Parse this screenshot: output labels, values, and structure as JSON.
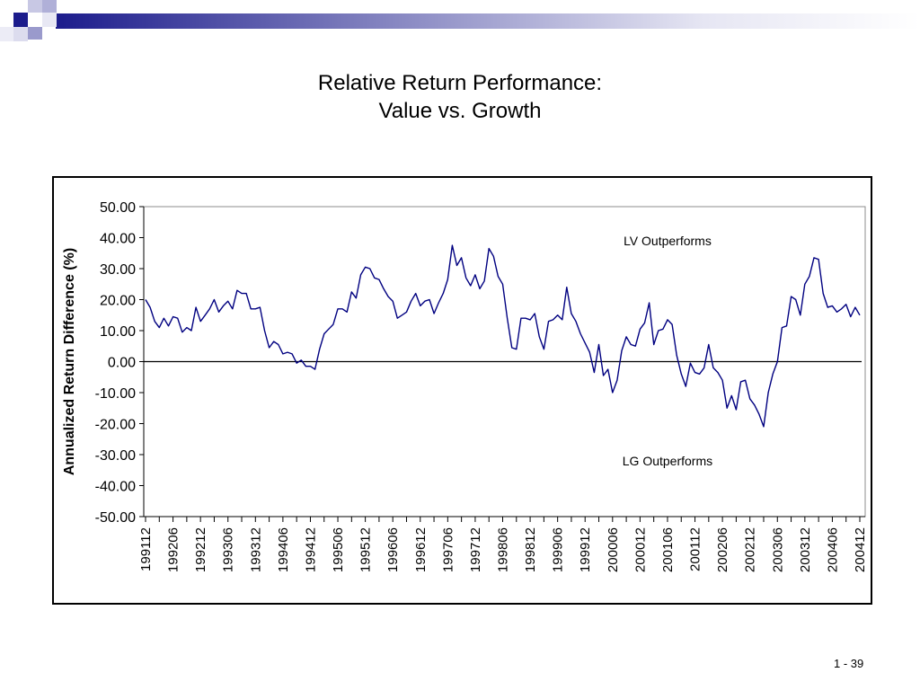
{
  "slide": {
    "title_line1": "Relative Return Performance:",
    "title_line2": "Value vs. Growth",
    "page_number": "1 - 39"
  },
  "chart_data": {
    "type": "line",
    "title": "Relative Return Performance: Value vs. Growth",
    "ylabel": "Annualized Return Difference (%)",
    "xlabel": "",
    "ylim": [
      -50,
      50
    ],
    "y_ticks": [
      "50.00",
      "40.00",
      "30.00",
      "20.00",
      "10.00",
      "0.00",
      "-10.00",
      "-20.00",
      "-30.00",
      "-40.00",
      "-50.00"
    ],
    "x_tick_labels": [
      "199112",
      "199206",
      "199212",
      "199306",
      "199312",
      "199406",
      "199412",
      "199506",
      "199512",
      "199606",
      "199612",
      "199706",
      "199712",
      "199806",
      "199812",
      "199906",
      "199912",
      "200006",
      "200012",
      "200106",
      "200112",
      "200206",
      "200212",
      "200306",
      "200312",
      "200406",
      "200412"
    ],
    "grid": false,
    "legend": "none",
    "annotations": [
      {
        "text": "LV Outperforms",
        "x": "200106",
        "y": 39
      },
      {
        "text": "LG Outperforms",
        "x": "200106",
        "y": -32
      }
    ],
    "series": [
      {
        "color": "#000080",
        "x_start": "199112",
        "x_end": "200412",
        "values": [
          20,
          17.5,
          13,
          11,
          14,
          11.5,
          14.5,
          14,
          9.5,
          11,
          10,
          17.5,
          13,
          15,
          17,
          20,
          16,
          18,
          19.5,
          17,
          23,
          22,
          22,
          17,
          17,
          17.5,
          10,
          4.5,
          6.5,
          5.5,
          2.5,
          3,
          2.5,
          -0.5,
          0.5,
          -1.5,
          -1.5,
          -2.5,
          4,
          9,
          10.5,
          12,
          17,
          17,
          16,
          22.5,
          20.5,
          28,
          30.5,
          30,
          27,
          26.5,
          23.5,
          21,
          19.5,
          14,
          15,
          16,
          19.5,
          22,
          18,
          19.5,
          20,
          15.5,
          19,
          22,
          26.5,
          37.5,
          31,
          33.5,
          27,
          24.5,
          28,
          23.5,
          26,
          36.5,
          34,
          27.5,
          25,
          14,
          4.5,
          4,
          14,
          14,
          13.5,
          15.5,
          8,
          4,
          13,
          13.5,
          15,
          13.5,
          24,
          15.5,
          13,
          9,
          6,
          3,
          -3.5,
          5.5,
          -4.5,
          -2.5,
          -10,
          -6,
          3.5,
          8,
          5.5,
          5,
          10.5,
          12.5,
          19,
          5.5,
          10,
          10.5,
          13.5,
          12,
          2,
          -4,
          -8,
          -0.5,
          -3.5,
          -4,
          -2,
          5.5,
          -2,
          -3.5,
          -6,
          -15,
          -11,
          -15.5,
          -6.5,
          -6,
          -12,
          -14,
          -17,
          -21,
          -10,
          -4,
          0,
          11,
          11.5,
          21,
          20,
          15,
          25,
          27.5,
          33.5,
          33,
          22,
          17.5,
          18,
          16,
          17,
          18.5,
          14.5,
          17.5,
          15
        ]
      }
    ]
  }
}
